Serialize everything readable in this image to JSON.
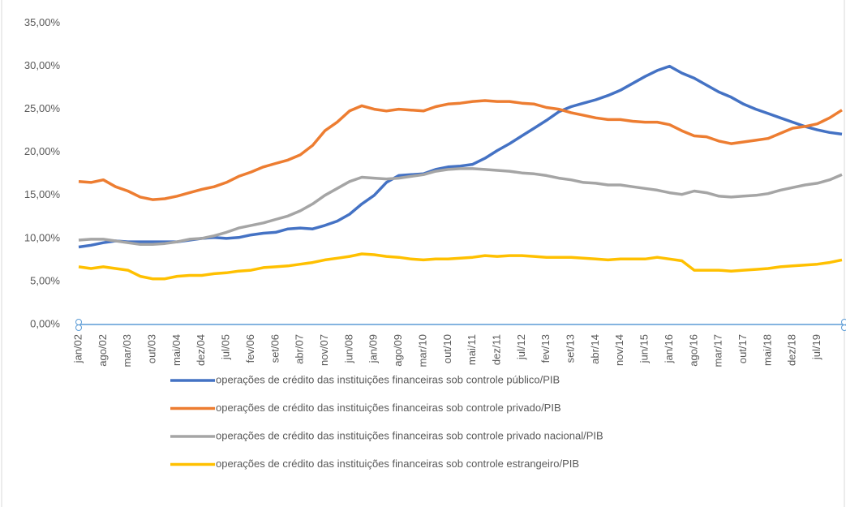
{
  "chart_data": {
    "type": "line",
    "categories": [
      "jan/02",
      null,
      "ago/02",
      null,
      "mar/03",
      null,
      "out/03",
      null,
      "mai/04",
      null,
      "dez/04",
      null,
      "jul/05",
      null,
      "fev/06",
      null,
      "set/06",
      null,
      "abr/07",
      null,
      "nov/07",
      null,
      "jun/08",
      null,
      "jan/09",
      null,
      "ago/09",
      null,
      "mar/10",
      null,
      "out/10",
      null,
      "mai/11",
      null,
      "dez/11",
      null,
      "jul/12",
      null,
      "fev/13",
      null,
      "set/13",
      null,
      "abr/14",
      null,
      "nov/14",
      null,
      "jun/15",
      null,
      "jan/16",
      null,
      "ago/16",
      null,
      "mar/17",
      null,
      "out/17",
      null,
      "mai/18",
      null,
      "dez/18",
      null,
      "jul/19",
      null,
      null
    ],
    "series": [
      {
        "name": "operações de crédito das instituições financeiras sob controle público/PIB",
        "color": "#4472c4",
        "values": [
          9.0,
          9.2,
          9.5,
          9.7,
          9.6,
          9.6,
          9.6,
          9.6,
          9.6,
          9.8,
          10.0,
          10.1,
          10.0,
          10.1,
          10.4,
          10.6,
          10.7,
          11.1,
          11.2,
          11.1,
          11.5,
          12.0,
          12.8,
          14.0,
          15.0,
          16.5,
          17.3,
          17.4,
          17.5,
          18.0,
          18.3,
          18.4,
          18.6,
          19.3,
          20.2,
          21.0,
          21.9,
          22.8,
          23.7,
          24.7,
          25.3,
          25.7,
          26.1,
          26.6,
          27.2,
          28.0,
          28.8,
          29.5,
          30.0,
          29.2,
          28.6,
          27.8,
          27.0,
          26.4,
          25.6,
          25.0,
          24.5,
          24.0,
          23.5,
          23.0,
          22.6,
          22.3,
          22.1
        ]
      },
      {
        "name": "operações de crédito das instituições financeiras sob controle privado/PIB",
        "color": "#ed7d31",
        "values": [
          16.6,
          16.5,
          16.8,
          16.0,
          15.5,
          14.8,
          14.5,
          14.6,
          14.9,
          15.3,
          15.7,
          16.0,
          16.5,
          17.2,
          17.7,
          18.3,
          18.7,
          19.1,
          19.7,
          20.8,
          22.5,
          23.5,
          24.8,
          25.4,
          25.0,
          24.8,
          25.0,
          24.9,
          24.8,
          25.3,
          25.6,
          25.7,
          25.9,
          26.0,
          25.9,
          25.9,
          25.7,
          25.6,
          25.2,
          25.0,
          24.6,
          24.3,
          24.0,
          23.8,
          23.8,
          23.6,
          23.5,
          23.5,
          23.2,
          22.5,
          21.9,
          21.8,
          21.3,
          21.0,
          21.2,
          21.4,
          21.6,
          22.2,
          22.8,
          23.0,
          23.3,
          24.0,
          24.9
        ]
      },
      {
        "name": "operações de crédito das instituições financeiras sob controle privado nacional/PIB",
        "color": "#a5a5a5",
        "values": [
          9.8,
          9.9,
          9.9,
          9.7,
          9.5,
          9.3,
          9.3,
          9.4,
          9.6,
          9.9,
          10.0,
          10.3,
          10.7,
          11.2,
          11.5,
          11.8,
          12.2,
          12.6,
          13.2,
          14.0,
          15.0,
          15.8,
          16.6,
          17.1,
          17.0,
          16.9,
          17.0,
          17.2,
          17.4,
          17.8,
          18.0,
          18.1,
          18.1,
          18.0,
          17.9,
          17.8,
          17.6,
          17.5,
          17.3,
          17.0,
          16.8,
          16.5,
          16.4,
          16.2,
          16.2,
          16.0,
          15.8,
          15.6,
          15.3,
          15.1,
          15.5,
          15.3,
          14.9,
          14.8,
          14.9,
          15.0,
          15.2,
          15.6,
          15.9,
          16.2,
          16.4,
          16.8,
          17.4
        ]
      },
      {
        "name": "operações de crédito das instituições financeiras sob controle estrangeiro/PIB",
        "color": "#ffc000",
        "values": [
          6.7,
          6.5,
          6.7,
          6.5,
          6.3,
          5.6,
          5.3,
          5.3,
          5.6,
          5.7,
          5.7,
          5.9,
          6.0,
          6.2,
          6.3,
          6.6,
          6.7,
          6.8,
          7.0,
          7.2,
          7.5,
          7.7,
          7.9,
          8.2,
          8.1,
          7.9,
          7.8,
          7.6,
          7.5,
          7.6,
          7.6,
          7.7,
          7.8,
          8.0,
          7.9,
          8.0,
          8.0,
          7.9,
          7.8,
          7.8,
          7.8,
          7.7,
          7.6,
          7.5,
          7.6,
          7.6,
          7.6,
          7.8,
          7.6,
          7.4,
          6.3,
          6.3,
          6.3,
          6.2,
          6.3,
          6.4,
          6.5,
          6.7,
          6.8,
          6.9,
          7.0,
          7.2,
          7.5
        ]
      }
    ],
    "ylim": [
      0,
      35
    ],
    "yticks": [
      {
        "value": 0,
        "label": "0,00%"
      },
      {
        "value": 5,
        "label": "5,00%"
      },
      {
        "value": 10,
        "label": "10,00%"
      },
      {
        "value": 15,
        "label": "15,00%"
      },
      {
        "value": 20,
        "label": "20,00%"
      },
      {
        "value": 25,
        "label": "25,00%"
      },
      {
        "value": 30,
        "label": "30,00%"
      },
      {
        "value": 35,
        "label": "35,00%"
      }
    ],
    "grid": false
  }
}
